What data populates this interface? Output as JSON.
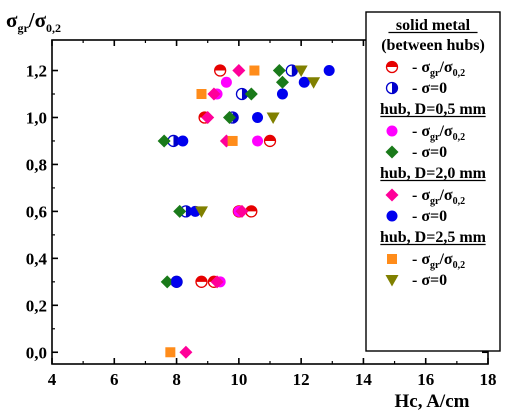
{
  "chart_data": {
    "type": "scatter",
    "title": "",
    "xlabel": "Hc, A/cm",
    "ylabel_main": "σ",
    "ylabel_sub1": "gr",
    "ylabel_sep": "/",
    "ylabel_main2": "σ",
    "ylabel_sub2": "0,2",
    "xlim": [
      4,
      18
    ],
    "ylim": [
      -0.05,
      1.33
    ],
    "x_ticks": [
      {
        "value": 4,
        "label": "4"
      },
      {
        "value": 6,
        "label": "6"
      },
      {
        "value": 8,
        "label": "8"
      },
      {
        "value": 10,
        "label": "10"
      },
      {
        "value": 12,
        "label": "12"
      },
      {
        "value": 14,
        "label": "14"
      },
      {
        "value": 16,
        "label": "16"
      },
      {
        "value": 18,
        "label": "18"
      }
    ],
    "y_ticks": [
      {
        "value": 0.0,
        "label": "0,0"
      },
      {
        "value": 0.2,
        "label": "0,2"
      },
      {
        "value": 0.4,
        "label": "0,4"
      },
      {
        "value": 0.6,
        "label": "0,6"
      },
      {
        "value": 0.8,
        "label": "0,8"
      },
      {
        "value": 1.0,
        "label": "1,0"
      },
      {
        "value": 1.2,
        "label": "1,2"
      }
    ],
    "legend": {
      "placement": "top-right",
      "groups": [
        {
          "title_line1": "solid metal",
          "title_line2": "(between hubs)"
        },
        {
          "title_line1": "hub, D=0,5 mm"
        },
        {
          "title_line1": "hub, D=2,0 mm"
        },
        {
          "title_line1": "hub, D=2,5 mm"
        }
      ],
      "entry_prefix": "- ",
      "sigma": "σ",
      "sub_gr": "gr",
      "slash": "/",
      "sub_02": "0,2",
      "eq0": "=0"
    },
    "series": [
      {
        "group": 0,
        "label_type": "ratio",
        "marker": "circle-half-h",
        "color": "#e60000",
        "points": [
          [
            9.4,
            1.2
          ],
          [
            8.9,
            1.0
          ],
          [
            11.0,
            0.9
          ],
          [
            10.4,
            0.6
          ],
          [
            10.0,
            0.6
          ],
          [
            8.8,
            0.3
          ],
          [
            9.2,
            0.3
          ]
        ]
      },
      {
        "group": 0,
        "label_type": "zero",
        "marker": "circle-half-v",
        "color": "#0000cc",
        "points": [
          [
            11.7,
            1.2
          ],
          [
            9.8,
            1.0
          ],
          [
            10.1,
            1.1
          ],
          [
            7.9,
            0.9
          ],
          [
            8.3,
            0.6
          ],
          [
            8.0,
            0.3
          ]
        ]
      },
      {
        "group": 1,
        "label_type": "ratio",
        "marker": "circle",
        "color": "#ff00ff",
        "points": [
          [
            9.3,
            1.1
          ],
          [
            9.6,
            1.15
          ],
          [
            10.6,
            0.9
          ],
          [
            10.0,
            0.6
          ],
          [
            9.4,
            0.3
          ]
        ]
      },
      {
        "group": 1,
        "label_type": "zero",
        "marker": "diamond",
        "color": "#1a7a1a",
        "points": [
          [
            11.3,
            1.2
          ],
          [
            11.4,
            1.15
          ],
          [
            10.4,
            1.1
          ],
          [
            7.6,
            0.9
          ],
          [
            9.7,
            1.0
          ],
          [
            8.1,
            0.6
          ],
          [
            7.7,
            0.3
          ]
        ]
      },
      {
        "group": 2,
        "label_type": "ratio",
        "marker": "diamond",
        "color": "#ff0099",
        "points": [
          [
            10.0,
            1.2
          ],
          [
            9.2,
            1.1
          ],
          [
            9.0,
            1.0
          ],
          [
            9.6,
            0.9
          ],
          [
            10.1,
            0.6
          ],
          [
            9.3,
            0.3
          ],
          [
            8.3,
            0.0
          ]
        ]
      },
      {
        "group": 2,
        "label_type": "zero",
        "marker": "circle",
        "color": "#0000ee",
        "points": [
          [
            12.9,
            1.2
          ],
          [
            12.1,
            1.15
          ],
          [
            11.4,
            1.1
          ],
          [
            10.6,
            1.0
          ],
          [
            8.2,
            0.9
          ],
          [
            8.6,
            0.6
          ],
          [
            8.0,
            0.3
          ]
        ]
      },
      {
        "group": 3,
        "label_type": "ratio",
        "marker": "square",
        "color": "#ff8c1a",
        "points": [
          [
            10.5,
            1.2
          ],
          [
            8.8,
            1.1
          ],
          [
            9.8,
            0.9
          ],
          [
            7.8,
            0.0
          ]
        ]
      },
      {
        "group": 3,
        "label_type": "zero",
        "marker": "triangle-down",
        "color": "#808000",
        "points": [
          [
            12.0,
            1.2
          ],
          [
            12.4,
            1.15
          ],
          [
            11.1,
            1.0
          ],
          [
            8.8,
            0.6
          ]
        ]
      }
    ]
  }
}
